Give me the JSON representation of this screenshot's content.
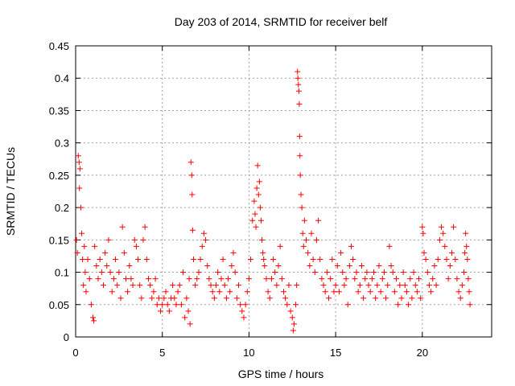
{
  "chart_data": {
    "type": "scatter",
    "title": "Day 203 of 2014, SRMTID for receiver belf",
    "xlabel": "GPS time / hours",
    "ylabel": "SRMTID / TECUs",
    "xlim": [
      0,
      24
    ],
    "ylim": [
      0,
      0.45
    ],
    "x_ticks": [
      0,
      5,
      10,
      15,
      20
    ],
    "x_tick_labels": [
      "0",
      "5",
      "10",
      "15",
      "20"
    ],
    "y_ticks": [
      0,
      0.05,
      0.1,
      0.15,
      0.2,
      0.25,
      0.3,
      0.35,
      0.4,
      0.45
    ],
    "y_tick_labels": [
      "0",
      "0.05",
      "0.1",
      "0.15",
      "0.2",
      "0.25",
      "0.3",
      "0.35",
      "0.4",
      "0.45"
    ],
    "grid": true,
    "marker": "+",
    "color": "#ff0000",
    "series": [
      {
        "name": "belf",
        "points": [
          [
            0.05,
            0.15
          ],
          [
            0.1,
            0.13
          ],
          [
            0.15,
            0.28
          ],
          [
            0.2,
            0.27
          ],
          [
            0.22,
            0.23
          ],
          [
            0.25,
            0.26
          ],
          [
            0.3,
            0.2
          ],
          [
            0.35,
            0.16
          ],
          [
            0.4,
            0.12
          ],
          [
            0.45,
            0.08
          ],
          [
            0.5,
            0.14
          ],
          [
            0.55,
            0.1
          ],
          [
            0.6,
            0.07
          ],
          [
            0.7,
            0.12
          ],
          [
            0.8,
            0.09
          ],
          [
            0.9,
            0.05
          ],
          [
            1.0,
            0.03
          ],
          [
            1.05,
            0.025
          ],
          [
            1.1,
            0.14
          ],
          [
            1.2,
            0.11
          ],
          [
            1.3,
            0.09
          ],
          [
            1.4,
            0.12
          ],
          [
            1.5,
            0.1
          ],
          [
            1.6,
            0.08
          ],
          [
            1.7,
            0.13
          ],
          [
            1.8,
            0.11
          ],
          [
            1.9,
            0.15
          ],
          [
            2.0,
            0.1
          ],
          [
            2.1,
            0.07
          ],
          [
            2.2,
            0.09
          ],
          [
            2.3,
            0.12
          ],
          [
            2.4,
            0.08
          ],
          [
            2.5,
            0.1
          ],
          [
            2.6,
            0.06
          ],
          [
            2.7,
            0.17
          ],
          [
            2.8,
            0.13
          ],
          [
            2.9,
            0.09
          ],
          [
            3.0,
            0.07
          ],
          [
            3.1,
            0.11
          ],
          [
            3.2,
            0.09
          ],
          [
            3.3,
            0.08
          ],
          [
            3.4,
            0.15
          ],
          [
            3.5,
            0.14
          ],
          [
            3.6,
            0.12
          ],
          [
            3.7,
            0.08
          ],
          [
            3.8,
            0.06
          ],
          [
            3.9,
            0.15
          ],
          [
            4.0,
            0.17
          ],
          [
            4.1,
            0.12
          ],
          [
            4.2,
            0.09
          ],
          [
            4.3,
            0.08
          ],
          [
            4.4,
            0.06
          ],
          [
            4.5,
            0.07
          ],
          [
            4.6,
            0.09
          ],
          [
            4.7,
            0.05
          ],
          [
            4.8,
            0.06
          ],
          [
            4.9,
            0.04
          ],
          [
            5.0,
            0.05
          ],
          [
            5.1,
            0.06
          ],
          [
            5.2,
            0.07
          ],
          [
            5.3,
            0.05
          ],
          [
            5.4,
            0.04
          ],
          [
            5.5,
            0.06
          ],
          [
            5.6,
            0.08
          ],
          [
            5.7,
            0.06
          ],
          [
            5.8,
            0.05
          ],
          [
            5.9,
            0.07
          ],
          [
            6.0,
            0.08
          ],
          [
            6.1,
            0.05
          ],
          [
            6.2,
            0.1
          ],
          [
            6.3,
            0.03
          ],
          [
            6.4,
            0.06
          ],
          [
            6.5,
            0.04
          ],
          [
            6.55,
            0.09
          ],
          [
            6.6,
            0.02
          ],
          [
            6.65,
            0.27
          ],
          [
            6.7,
            0.25
          ],
          [
            6.72,
            0.22
          ],
          [
            6.75,
            0.165
          ],
          [
            6.8,
            0.12
          ],
          [
            6.9,
            0.08
          ],
          [
            7.0,
            0.09
          ],
          [
            7.1,
            0.1
          ],
          [
            7.2,
            0.12
          ],
          [
            7.3,
            0.14
          ],
          [
            7.4,
            0.16
          ],
          [
            7.5,
            0.15
          ],
          [
            7.6,
            0.11
          ],
          [
            7.7,
            0.09
          ],
          [
            7.8,
            0.08
          ],
          [
            7.9,
            0.07
          ],
          [
            8.0,
            0.06
          ],
          [
            8.1,
            0.08
          ],
          [
            8.2,
            0.1
          ],
          [
            8.3,
            0.07
          ],
          [
            8.4,
            0.09
          ],
          [
            8.5,
            0.12
          ],
          [
            8.6,
            0.08
          ],
          [
            8.7,
            0.06
          ],
          [
            8.8,
            0.09
          ],
          [
            8.9,
            0.07
          ],
          [
            9.0,
            0.11
          ],
          [
            9.1,
            0.13
          ],
          [
            9.2,
            0.1
          ],
          [
            9.3,
            0.06
          ],
          [
            9.4,
            0.08
          ],
          [
            9.5,
            0.05
          ],
          [
            9.6,
            0.04
          ],
          [
            9.7,
            0.03
          ],
          [
            9.8,
            0.05
          ],
          [
            9.9,
            0.07
          ],
          [
            10.0,
            0.09
          ],
          [
            10.1,
            0.12
          ],
          [
            10.2,
            0.18
          ],
          [
            10.3,
            0.21
          ],
          [
            10.35,
            0.19
          ],
          [
            10.4,
            0.17
          ],
          [
            10.45,
            0.23
          ],
          [
            10.5,
            0.265
          ],
          [
            10.55,
            0.22
          ],
          [
            10.6,
            0.24
          ],
          [
            10.65,
            0.2
          ],
          [
            10.7,
            0.18
          ],
          [
            10.75,
            0.15
          ],
          [
            10.8,
            0.13
          ],
          [
            10.85,
            0.12
          ],
          [
            10.9,
            0.11
          ],
          [
            11.0,
            0.09
          ],
          [
            11.1,
            0.07
          ],
          [
            11.2,
            0.06
          ],
          [
            11.3,
            0.09
          ],
          [
            11.4,
            0.12
          ],
          [
            11.5,
            0.1
          ],
          [
            11.6,
            0.08
          ],
          [
            11.7,
            0.11
          ],
          [
            11.8,
            0.14
          ],
          [
            11.9,
            0.09
          ],
          [
            12.0,
            0.07
          ],
          [
            12.1,
            0.06
          ],
          [
            12.2,
            0.05
          ],
          [
            12.3,
            0.08
          ],
          [
            12.4,
            0.04
          ],
          [
            12.5,
            0.03
          ],
          [
            12.55,
            0.01
          ],
          [
            12.6,
            0.02
          ],
          [
            12.7,
            0.05
          ],
          [
            12.75,
            0.08
          ],
          [
            12.8,
            0.41
          ],
          [
            12.82,
            0.4
          ],
          [
            12.85,
            0.39
          ],
          [
            12.88,
            0.38
          ],
          [
            12.9,
            0.36
          ],
          [
            12.92,
            0.31
          ],
          [
            12.94,
            0.28
          ],
          [
            12.96,
            0.25
          ],
          [
            13.0,
            0.22
          ],
          [
            13.05,
            0.2
          ],
          [
            13.1,
            0.16
          ],
          [
            13.15,
            0.14
          ],
          [
            13.2,
            0.18
          ],
          [
            13.3,
            0.15
          ],
          [
            13.4,
            0.13
          ],
          [
            13.5,
            0.11
          ],
          [
            13.6,
            0.16
          ],
          [
            13.7,
            0.12
          ],
          [
            13.8,
            0.1
          ],
          [
            13.9,
            0.15
          ],
          [
            14.0,
            0.18
          ],
          [
            14.1,
            0.12
          ],
          [
            14.2,
            0.09
          ],
          [
            14.3,
            0.08
          ],
          [
            14.4,
            0.07
          ],
          [
            14.5,
            0.1
          ],
          [
            14.6,
            0.06
          ],
          [
            14.7,
            0.09
          ],
          [
            14.8,
            0.12
          ],
          [
            14.9,
            0.07
          ],
          [
            15.0,
            0.08
          ],
          [
            15.1,
            0.11
          ],
          [
            15.2,
            0.07
          ],
          [
            15.3,
            0.13
          ],
          [
            15.4,
            0.1
          ],
          [
            15.5,
            0.08
          ],
          [
            15.6,
            0.09
          ],
          [
            15.7,
            0.05
          ],
          [
            15.8,
            0.11
          ],
          [
            15.9,
            0.14
          ],
          [
            16.0,
            0.12
          ],
          [
            16.1,
            0.09
          ],
          [
            16.2,
            0.1
          ],
          [
            16.3,
            0.07
          ],
          [
            16.4,
            0.08
          ],
          [
            16.5,
            0.11
          ],
          [
            16.6,
            0.06
          ],
          [
            16.7,
            0.09
          ],
          [
            16.8,
            0.1
          ],
          [
            16.9,
            0.08
          ],
          [
            17.0,
            0.07
          ],
          [
            17.1,
            0.09
          ],
          [
            17.2,
            0.1
          ],
          [
            17.3,
            0.06
          ],
          [
            17.4,
            0.08
          ],
          [
            17.5,
            0.11
          ],
          [
            17.6,
            0.07
          ],
          [
            17.7,
            0.09
          ],
          [
            17.8,
            0.1
          ],
          [
            17.9,
            0.06
          ],
          [
            18.0,
            0.08
          ],
          [
            18.1,
            0.14
          ],
          [
            18.2,
            0.11
          ],
          [
            18.3,
            0.1
          ],
          [
            18.4,
            0.07
          ],
          [
            18.5,
            0.09
          ],
          [
            18.6,
            0.05
          ],
          [
            18.7,
            0.08
          ],
          [
            18.8,
            0.06
          ],
          [
            18.9,
            0.1
          ],
          [
            19.0,
            0.08
          ],
          [
            19.1,
            0.07
          ],
          [
            19.2,
            0.05
          ],
          [
            19.3,
            0.09
          ],
          [
            19.4,
            0.06
          ],
          [
            19.5,
            0.1
          ],
          [
            19.6,
            0.08
          ],
          [
            19.7,
            0.07
          ],
          [
            19.8,
            0.09
          ],
          [
            19.9,
            0.06
          ],
          [
            20.0,
            0.17
          ],
          [
            20.05,
            0.16
          ],
          [
            20.1,
            0.13
          ],
          [
            20.2,
            0.12
          ],
          [
            20.3,
            0.1
          ],
          [
            20.4,
            0.08
          ],
          [
            20.5,
            0.07
          ],
          [
            20.6,
            0.09
          ],
          [
            20.7,
            0.11
          ],
          [
            20.8,
            0.08
          ],
          [
            20.9,
            0.12
          ],
          [
            21.0,
            0.15
          ],
          [
            21.1,
            0.17
          ],
          [
            21.2,
            0.16
          ],
          [
            21.3,
            0.14
          ],
          [
            21.4,
            0.12
          ],
          [
            21.5,
            0.09
          ],
          [
            21.6,
            0.11
          ],
          [
            21.7,
            0.13
          ],
          [
            21.8,
            0.17
          ],
          [
            21.9,
            0.12
          ],
          [
            22.0,
            0.09
          ],
          [
            22.1,
            0.07
          ],
          [
            22.2,
            0.06
          ],
          [
            22.3,
            0.08
          ],
          [
            22.4,
            0.1
          ],
          [
            22.45,
            0.13
          ],
          [
            22.5,
            0.16
          ],
          [
            22.55,
            0.14
          ],
          [
            22.6,
            0.12
          ],
          [
            22.65,
            0.09
          ],
          [
            22.7,
            0.07
          ],
          [
            22.75,
            0.05
          ]
        ]
      }
    ]
  }
}
